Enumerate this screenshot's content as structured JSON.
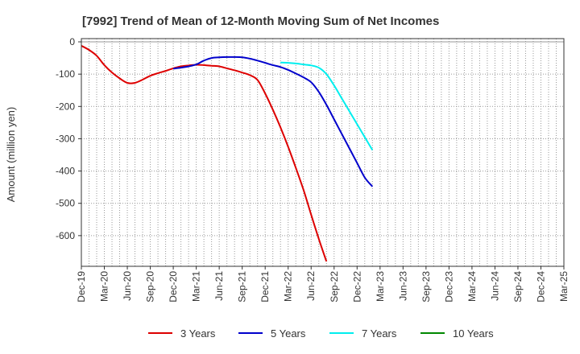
{
  "chart_data": {
    "type": "line",
    "title": "[7992]  Trend of Mean of 12-Month Moving Sum of Net Incomes",
    "xlabel": "",
    "ylabel": "Amount (million yen)",
    "ylim": [
      -695,
      10
    ],
    "yticks": [
      0,
      -100,
      -200,
      -300,
      -400,
      -500,
      -600
    ],
    "ytick_labels": [
      "0",
      "-100",
      "-200",
      "-300",
      "-400",
      "-500",
      "-600"
    ],
    "xtick_labels": [
      "Dec-19",
      "Mar-20",
      "Jun-20",
      "Sep-20",
      "Dec-20",
      "Mar-21",
      "Jun-21",
      "Sep-21",
      "Dec-21",
      "Mar-22",
      "Jun-22",
      "Sep-22",
      "Dec-22",
      "Mar-23",
      "Jun-23",
      "Sep-23",
      "Dec-23",
      "Mar-24",
      "Jun-24",
      "Sep-24",
      "Dec-24",
      "Mar-25"
    ],
    "grid": true,
    "legend_position": "bottom",
    "series": [
      {
        "name": "3 Years",
        "color": "#dd0000",
        "start_index": 0,
        "values": [
          -12,
          -25,
          -43,
          -72,
          -95,
          -113,
          -127,
          -127,
          -117,
          -105,
          -97,
          -90,
          -82,
          -76,
          -73,
          -71,
          -72,
          -74,
          -76,
          -82,
          -88,
          -95,
          -103,
          -118,
          -160,
          -210,
          -265,
          -325,
          -390,
          -458,
          -535,
          -610,
          -680
        ]
      },
      {
        "name": "5 Years",
        "color": "#0000cc",
        "start_index": 12,
        "values": [
          -83,
          -80,
          -76,
          -70,
          -58,
          -50,
          -48,
          -47,
          -47,
          -48,
          -52,
          -58,
          -65,
          -72,
          -78,
          -87,
          -98,
          -110,
          -125,
          -155,
          -195,
          -240,
          -285,
          -330,
          -375,
          -420,
          -448
        ]
      },
      {
        "name": "7 Years",
        "color": "#00eeee",
        "start_index": 26,
        "values": [
          -64,
          -65,
          -67,
          -70,
          -73,
          -80,
          -100,
          -135,
          -175,
          -215,
          -255,
          -295,
          -335
        ]
      },
      {
        "name": "10 Years",
        "color": "#008800",
        "start_index": 0,
        "values": []
      }
    ]
  }
}
